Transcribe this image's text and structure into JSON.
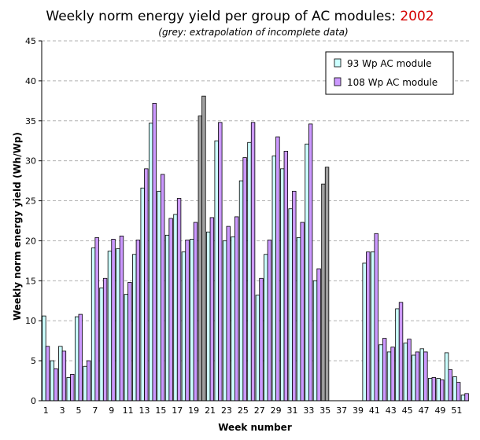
{
  "chart_data": {
    "type": "bar",
    "title_prefix": "Weekly norm energy yield per group of AC modules: ",
    "title_year": "2002",
    "subtitle": "(grey: extrapolation of incomplete data)",
    "xlabel": "Week number",
    "ylabel": "Weekly norm energy yield (Wh/Wp)",
    "ylim": [
      0,
      45
    ],
    "ytick_step": 5,
    "grid": true,
    "legend_position": "top-right",
    "x_tick_labels": [
      "1",
      "3",
      "5",
      "7",
      "9",
      "11",
      "13",
      "15",
      "17",
      "19",
      "21",
      "23",
      "25",
      "27",
      "29",
      "31",
      "33",
      "35",
      "37",
      "39",
      "41",
      "43",
      "45",
      "47",
      "49",
      "51"
    ],
    "weeks": [
      1,
      2,
      3,
      4,
      5,
      6,
      7,
      8,
      9,
      10,
      11,
      12,
      13,
      14,
      15,
      16,
      17,
      18,
      19,
      20,
      21,
      22,
      23,
      24,
      25,
      26,
      27,
      28,
      29,
      30,
      31,
      32,
      33,
      34,
      35,
      36,
      37,
      38,
      39,
      40,
      41,
      42,
      43,
      44,
      45,
      46,
      47,
      48,
      49,
      50,
      51,
      52
    ],
    "extrapolated_weeks": [
      20,
      35
    ],
    "series": [
      {
        "name": "93 Wp AC module",
        "color": "#ccffff",
        "values": [
          10.6,
          5.0,
          6.8,
          2.9,
          10.5,
          4.3,
          19.1,
          14.1,
          18.7,
          19.0,
          13.3,
          18.3,
          26.6,
          34.7,
          26.2,
          20.7,
          23.3,
          18.6,
          20.2,
          35.6,
          21.1,
          32.5,
          20.0,
          20.5,
          27.5,
          32.3,
          13.2,
          18.3,
          30.6,
          29.0,
          24.0,
          20.4,
          32.1,
          15.0,
          27.1,
          0,
          0,
          0,
          0,
          17.2,
          18.6,
          7.0,
          6.1,
          11.5,
          7.2,
          5.7,
          6.5,
          2.8,
          2.8,
          6.0,
          3.0,
          0.7
        ]
      },
      {
        "name": "108 Wp AC module",
        "color": "#cc99ff",
        "values": [
          6.8,
          4.0,
          6.2,
          3.3,
          10.8,
          5.0,
          20.4,
          15.3,
          20.2,
          20.6,
          14.8,
          20.1,
          29.0,
          37.2,
          28.3,
          22.8,
          25.3,
          20.1,
          22.3,
          38.1,
          22.9,
          34.8,
          21.8,
          23.0,
          30.4,
          34.8,
          15.3,
          20.1,
          33.0,
          31.2,
          26.2,
          22.3,
          34.6,
          16.5,
          29.2,
          0,
          0,
          0,
          0,
          18.6,
          20.9,
          7.8,
          6.7,
          12.3,
          7.7,
          6.1,
          6.1,
          2.9,
          2.6,
          3.9,
          2.3,
          0.9
        ]
      }
    ],
    "extrapolated_color": "#a0a0a0"
  }
}
